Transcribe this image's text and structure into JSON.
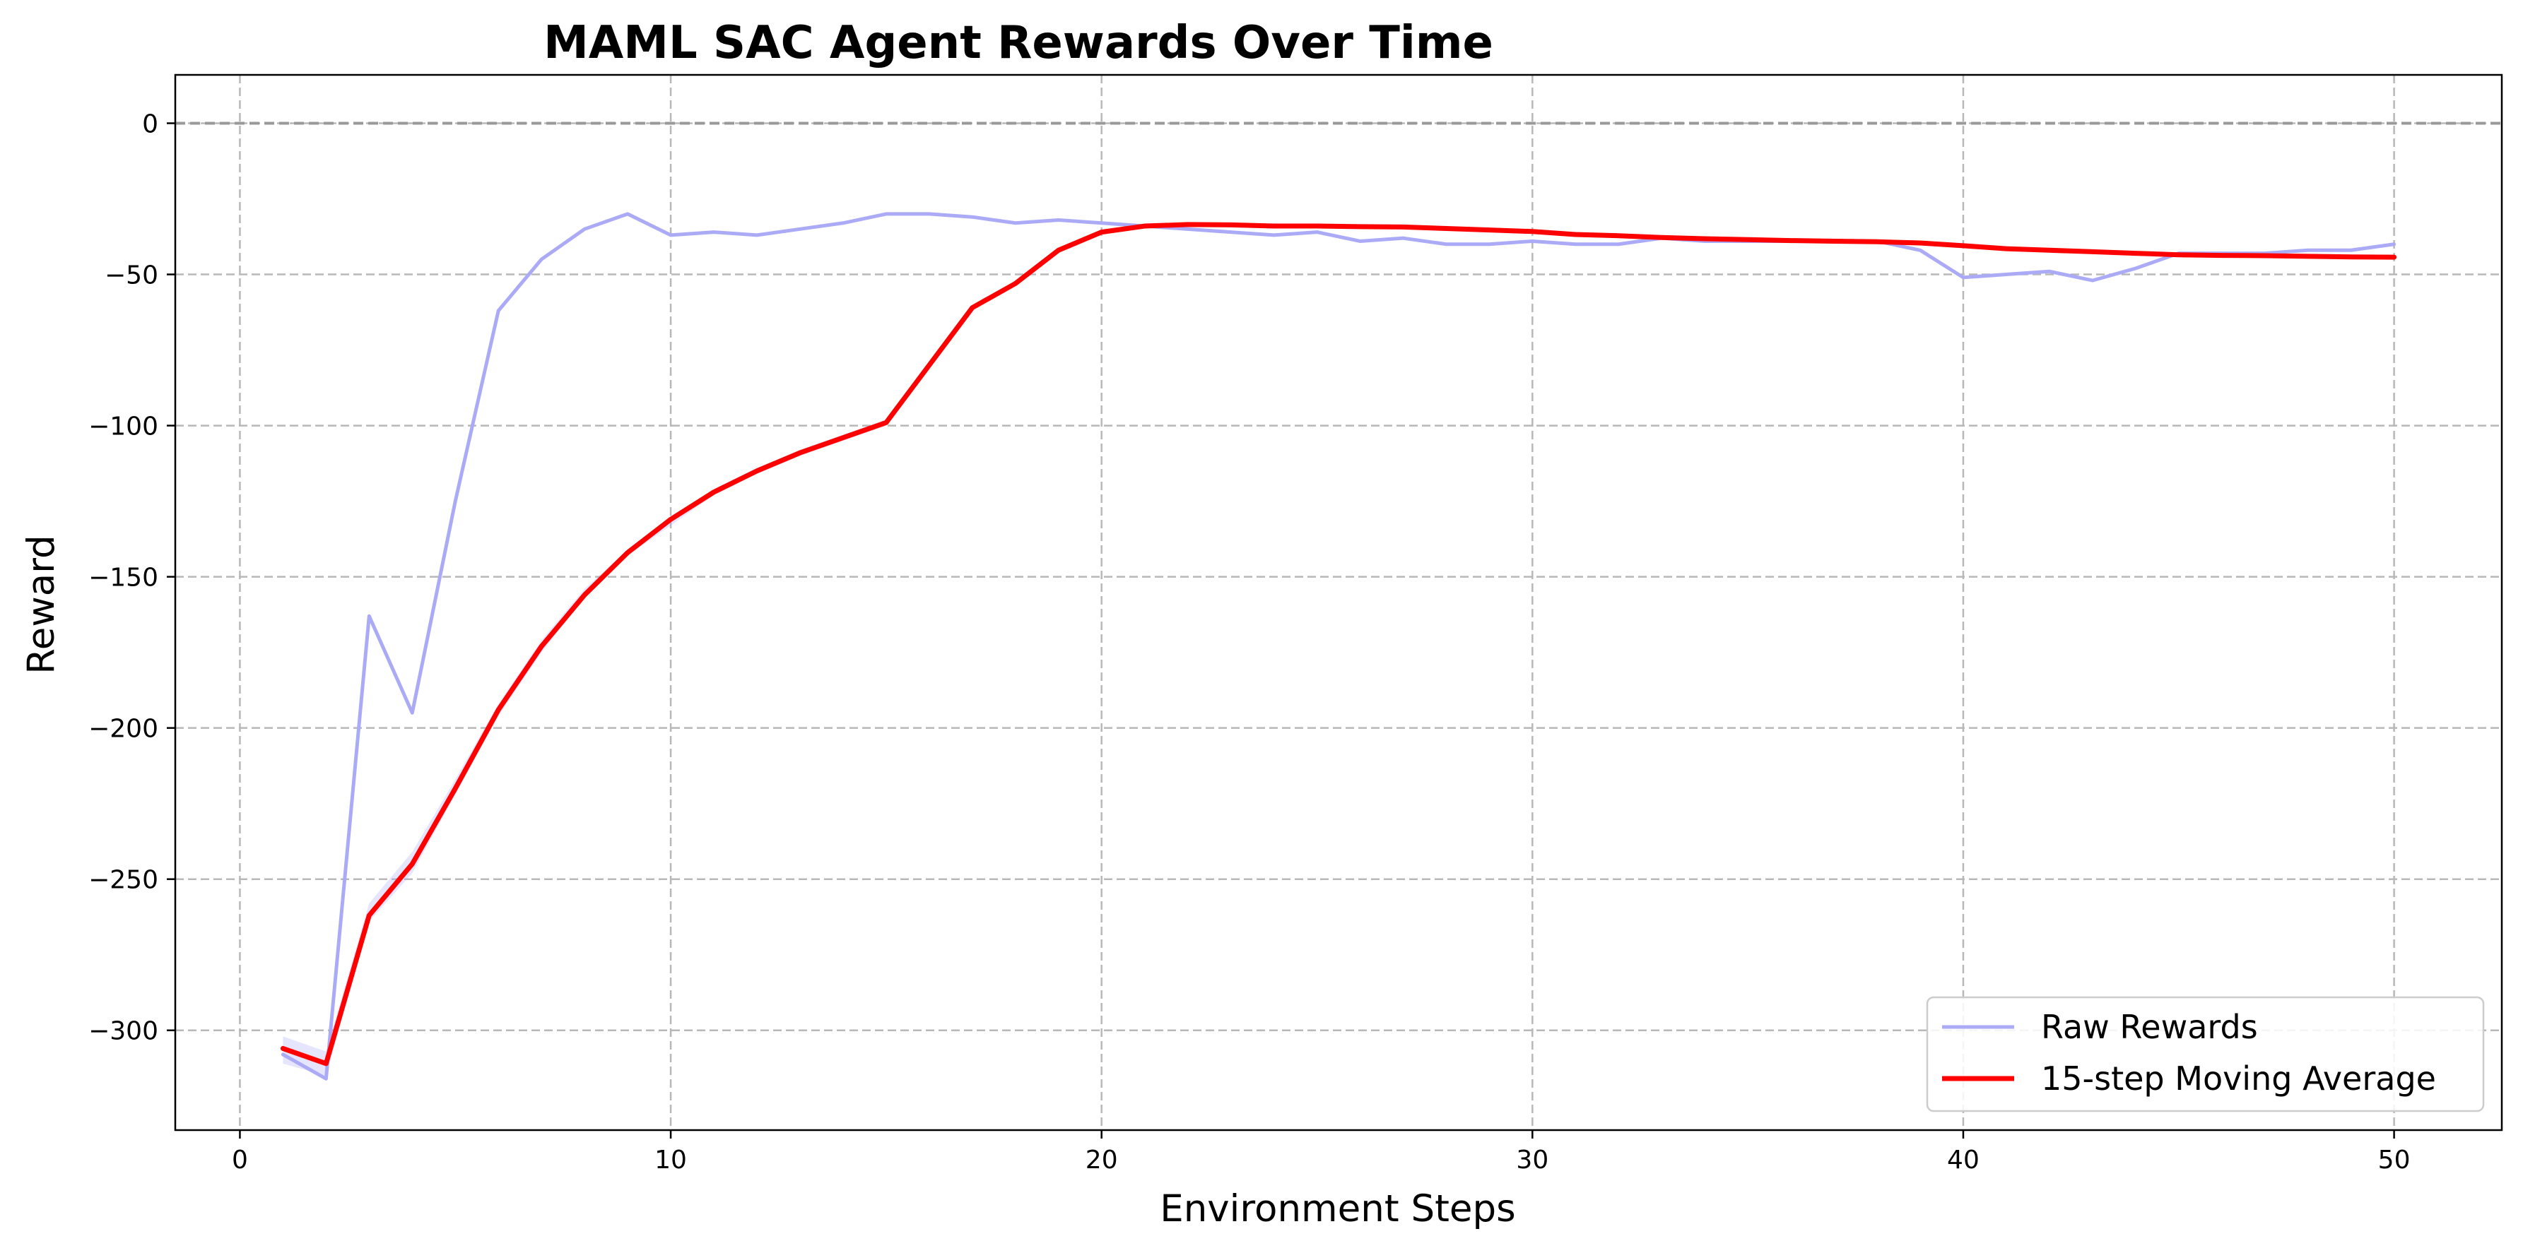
{
  "chart_data": {
    "type": "line",
    "title": "MAML SAC Agent Rewards Over Time",
    "xlabel": "Environment Steps",
    "ylabel": "Reward",
    "xlim": [
      -1.5,
      52.5
    ],
    "ylim": [
      -333,
      16
    ],
    "xticks": [
      0,
      10,
      20,
      30,
      40,
      50
    ],
    "yticks": [
      0,
      -50,
      -100,
      -150,
      -200,
      -250,
      -300
    ],
    "xtick_labels": [
      "0",
      "10",
      "20",
      "30",
      "40",
      "50"
    ],
    "ytick_labels": [
      "0",
      "−50",
      "−100",
      "−150",
      "−200",
      "−250",
      "−300"
    ],
    "grid": true,
    "reference_line": {
      "y": 0,
      "style": "dashed",
      "color": "#999999"
    },
    "legend_position": "bottom-right",
    "series": [
      {
        "name": "Raw Rewards",
        "color": "#aaaaf7",
        "x": [
          1,
          2,
          3,
          4,
          5,
          6,
          7,
          8,
          9,
          10,
          11,
          12,
          13,
          14,
          15,
          16,
          17,
          18,
          19,
          20,
          21,
          22,
          23,
          24,
          25,
          26,
          27,
          28,
          29,
          30,
          31,
          32,
          33,
          34,
          35,
          36,
          37,
          38,
          39,
          40,
          41,
          42,
          43,
          44,
          45,
          46,
          47,
          48,
          49,
          50
        ],
        "values": [
          -308,
          -316,
          -163,
          -195,
          -125,
          -62,
          -45,
          -35,
          -30,
          -37,
          -36,
          -37,
          -35,
          -33,
          -30,
          -30,
          -31,
          -33,
          -32,
          -33,
          -34,
          -35,
          -36,
          -37,
          -36,
          -39,
          -38,
          -40,
          -40,
          -39,
          -40,
          -40,
          -38,
          -39,
          -39,
          -39,
          -39,
          -39,
          -42,
          -51,
          -50,
          -49,
          -52,
          -48,
          -43,
          -43,
          -43,
          -42,
          -42,
          -40
        ]
      },
      {
        "name": "15-step Moving Average",
        "color": "#ff0000",
        "x": [
          1,
          2,
          3,
          4,
          5,
          6,
          7,
          8,
          9,
          10,
          11,
          12,
          13,
          14,
          15,
          16,
          17,
          18,
          19,
          20,
          21,
          22,
          23,
          24,
          25,
          26,
          27,
          28,
          29,
          30,
          31,
          32,
          33,
          34,
          35,
          36,
          37,
          38,
          39,
          40,
          41,
          42,
          43,
          44,
          45,
          46,
          47,
          48,
          49,
          50
        ],
        "values": [
          -306,
          -311,
          -262,
          -245,
          -220,
          -194,
          -173,
          -156,
          -142,
          -131,
          -122,
          -115,
          -109,
          -104,
          -99,
          -80,
          -61,
          -53,
          -42,
          -36,
          -34,
          -33.5,
          -33.6,
          -34,
          -34,
          -34.2,
          -34.3,
          -34.8,
          -35.3,
          -35.8,
          -36.8,
          -37.2,
          -37.8,
          -38.2,
          -38.5,
          -38.8,
          -39,
          -39.2,
          -39.6,
          -40.5,
          -41.5,
          -42,
          -42.5,
          -43,
          -43.5,
          -43.7,
          -43.8,
          -44,
          -44.2,
          -44.3
        ]
      }
    ],
    "band": {
      "series": "Raw Rewards",
      "color": "#aaaaf7",
      "x": [
        1,
        2,
        3,
        4,
        5,
        6,
        7,
        8,
        9,
        10,
        11,
        12,
        13,
        14,
        15
      ],
      "lower": [
        -311,
        -315,
        -264,
        -248,
        -222,
        -196,
        -175,
        -157,
        -143,
        -133,
        -123,
        -116,
        -110,
        -105,
        -100
      ],
      "upper": [
        -302,
        -307,
        -258,
        -241,
        -217,
        -192,
        -171,
        -154,
        -141,
        -130,
        -121,
        -114,
        -108,
        -103,
        -98
      ]
    }
  }
}
